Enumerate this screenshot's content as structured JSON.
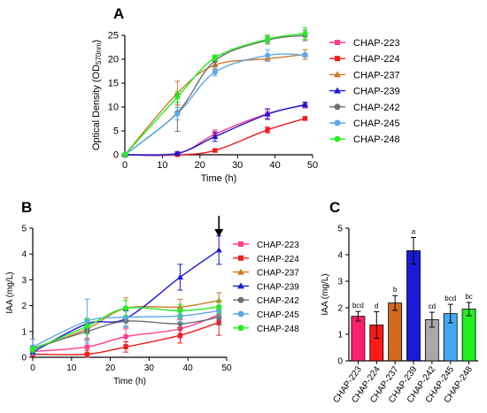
{
  "chart_data": [
    {
      "panel_label": "A",
      "type": "line",
      "xlabel": "Time (h)",
      "ylabel": "Optical Density (OD",
      "ylabel_sub": "570nm",
      "ylabel_end": ")",
      "xlim": [
        0,
        50
      ],
      "ylim": [
        0,
        25
      ],
      "xticks": [
        0,
        10,
        20,
        30,
        40,
        50
      ],
      "yticks": [
        0,
        5,
        10,
        15,
        20,
        25
      ],
      "grid": false,
      "legend_position": "right",
      "x": [
        0,
        14,
        24,
        38,
        48
      ],
      "series": [
        {
          "name": "CHAP-223",
          "color": "#ff3d8b",
          "marker": "square",
          "values": [
            0,
            0.2,
            4.3,
            8.6,
            10.4
          ],
          "errors": [
            0,
            0.3,
            0.9,
            1.0,
            0.6
          ]
        },
        {
          "name": "CHAP-224",
          "color": "#ee1c1c",
          "marker": "square",
          "values": [
            0,
            0,
            0.9,
            5.2,
            7.6
          ],
          "errors": [
            0,
            0,
            0.3,
            0.6,
            0.4
          ]
        },
        {
          "name": "CHAP-237",
          "color": "#d07a2a",
          "marker": "triangle",
          "values": [
            0,
            12.9,
            18.8,
            20.1,
            21.0
          ],
          "errors": [
            0,
            2.5,
            0.9,
            0.5,
            1.0
          ]
        },
        {
          "name": "CHAP-239",
          "color": "#1a1ad6",
          "marker": "triangle",
          "values": [
            0,
            0.3,
            3.8,
            8.5,
            10.5
          ],
          "errors": [
            0,
            0.3,
            1.0,
            1.1,
            0.5
          ]
        },
        {
          "name": "CHAP-242",
          "color": "#6e6e6e",
          "marker": "circle",
          "values": [
            0,
            8.8,
            19.7,
            24.0,
            25.0
          ],
          "errors": [
            0,
            3.9,
            1.0,
            0.8,
            1.1
          ]
        },
        {
          "name": "CHAP-245",
          "color": "#5ca8ea",
          "marker": "circle",
          "values": [
            0,
            8.6,
            17.3,
            20.8,
            20.9
          ],
          "errors": [
            0,
            1.3,
            0.8,
            1.2,
            0.4
          ]
        },
        {
          "name": "CHAP-248",
          "color": "#22ee22",
          "marker": "circle",
          "values": [
            0,
            12.1,
            20.3,
            24.2,
            25.4
          ],
          "errors": [
            0,
            1.1,
            0.6,
            0.9,
            1.2
          ]
        }
      ]
    },
    {
      "panel_label": "B",
      "type": "line",
      "xlabel": "Time (h)",
      "ylabel": "IAA (mg/L)",
      "xlim": [
        0,
        50
      ],
      "ylim": [
        0,
        5
      ],
      "xticks": [
        0,
        10,
        20,
        30,
        40,
        50
      ],
      "yticks": [
        0,
        1,
        2,
        3,
        4,
        5
      ],
      "grid": false,
      "legend_position": "right",
      "annotation": "arrow at 48 h",
      "x": [
        0,
        14,
        24,
        38,
        48
      ],
      "series": [
        {
          "name": "CHAP-223",
          "color": "#ff3d8b",
          "marker": "square",
          "values": [
            0.22,
            0.4,
            0.8,
            1.1,
            1.65
          ],
          "errors": [
            0.1,
            0.3,
            0.3,
            0.35,
            0.2
          ]
        },
        {
          "name": "CHAP-224",
          "color": "#ee1c1c",
          "marker": "square",
          "values": [
            0.12,
            0.12,
            0.4,
            0.85,
            1.35
          ],
          "errors": [
            0.1,
            0.15,
            0.2,
            0.3,
            0.5
          ]
        },
        {
          "name": "CHAP-237",
          "color": "#d07a2a",
          "marker": "triangle",
          "values": [
            0.3,
            1.1,
            1.9,
            1.95,
            2.2
          ],
          "errors": [
            0.15,
            0.35,
            0.4,
            0.3,
            0.3
          ]
        },
        {
          "name": "CHAP-239",
          "color": "#1a1ad6",
          "marker": "triangle",
          "values": [
            0.2,
            1.3,
            1.5,
            3.1,
            4.15
          ],
          "errors": [
            0.1,
            0.2,
            0.3,
            0.5,
            0.55
          ]
        },
        {
          "name": "CHAP-242",
          "color": "#6e6e6e",
          "marker": "circle",
          "values": [
            0.35,
            1.0,
            1.4,
            1.3,
            1.55
          ],
          "errors": [
            0.1,
            0.35,
            0.2,
            0.2,
            0.3
          ]
        },
        {
          "name": "CHAP-245",
          "color": "#5ca8ea",
          "marker": "circle",
          "values": [
            0.4,
            1.4,
            1.55,
            1.6,
            1.8
          ],
          "errors": [
            0.3,
            0.85,
            0.4,
            0.25,
            0.2
          ]
        },
        {
          "name": "CHAP-248",
          "color": "#22ee22",
          "marker": "circle",
          "values": [
            0.3,
            1.2,
            1.9,
            1.8,
            1.95
          ],
          "errors": [
            0.1,
            0.3,
            0.3,
            0.25,
            0.25
          ]
        }
      ]
    },
    {
      "panel_label": "C",
      "type": "bar",
      "ylabel": "IAA (mg/L)",
      "ylim": [
        0,
        5
      ],
      "yticks": [
        0,
        1,
        2,
        3,
        4,
        5
      ],
      "grid": false,
      "categories": [
        "CHAP-223",
        "CHAP-224",
        "CHAP-237",
        "CHAP-239",
        "CHAP-242",
        "CHAP-245",
        "CHAP-248"
      ],
      "values": [
        1.68,
        1.35,
        2.18,
        4.15,
        1.55,
        1.78,
        1.95
      ],
      "errors": [
        0.18,
        0.5,
        0.28,
        0.5,
        0.28,
        0.35,
        0.25
      ],
      "letters": [
        "bcd",
        "d",
        "b",
        "a",
        "cd",
        "bcd",
        "bc"
      ],
      "colors": [
        "#ff1f6e",
        "#ff1a1a",
        "#d2691e",
        "#1a1ad6",
        "#a9a9a9",
        "#3fa9f5",
        "#22ee22"
      ]
    }
  ]
}
